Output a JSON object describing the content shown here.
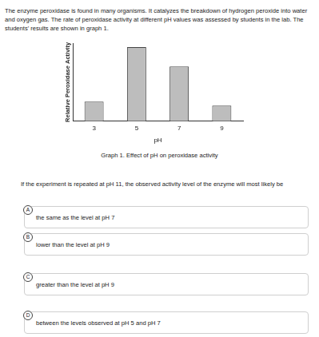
{
  "intro": "The enzyme peroxidase is found in many organisms. It catalyzes the breakdown of hydrogen peroxide into water and oxygen gas. The rate of peroxidase activity at different pH values was assessed by students in the lab. The students' results are shown in graph 1.",
  "chart_data": {
    "type": "bar",
    "x_label": "pH",
    "y_label": "Relative Peroxidase Activity",
    "categories": [
      "3",
      "5",
      "7",
      "9"
    ],
    "values": [
      25,
      95,
      70,
      20
    ],
    "color": "#bdbdbd",
    "ylim": [
      0,
      100
    ],
    "grid": false,
    "tick_labels": "x"
  },
  "caption": "Graph 1. Effect of pH on peroxidase activity",
  "question": "If the experiment is repeated at pH 11, the observed activity level of the enzyme will most likely be",
  "options": [
    {
      "letter": "A",
      "text": "the same as the level at pH 7"
    },
    {
      "letter": "B",
      "text": "lower than the level at pH 9"
    },
    {
      "letter": "C",
      "text": "greater than the level at pH 9"
    },
    {
      "letter": "D",
      "text": "between the levels observed at pH 5 and pH 7"
    }
  ]
}
